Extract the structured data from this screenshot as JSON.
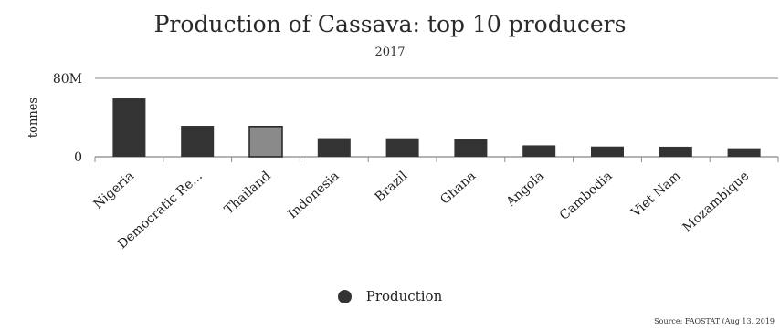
{
  "chart_data": {
    "type": "bar",
    "title": "Production of Cassava: top 10 producers",
    "subtitle": "2017",
    "ylabel": "tonnes",
    "xlabel": "",
    "ylim": [
      0,
      80000000
    ],
    "y_ticks": [
      {
        "value": 0,
        "label": "0"
      },
      {
        "value": 80000000,
        "label": "80M"
      }
    ],
    "categories": [
      "Nigeria",
      "Democratic Re...",
      "Thailand",
      "Indonesia",
      "Brazil",
      "Ghana",
      "Angola",
      "Cambodia",
      "Viet Nam",
      "Mozambique"
    ],
    "series": [
      {
        "name": "Production",
        "values": [
          59500000,
          31600000,
          30900000,
          19000000,
          18900000,
          18500000,
          11700000,
          10500000,
          10300000,
          8700000
        ]
      }
    ],
    "highlighted_category": "Thailand",
    "grid": false,
    "legend": "bottom-center",
    "source": "Source: FAOSTAT (Aug 13, 2019"
  },
  "colors": {
    "bar": "#333333",
    "bar_highlight": "#8a8a8a",
    "axis": "#888888",
    "legend_dot": "#333333"
  }
}
